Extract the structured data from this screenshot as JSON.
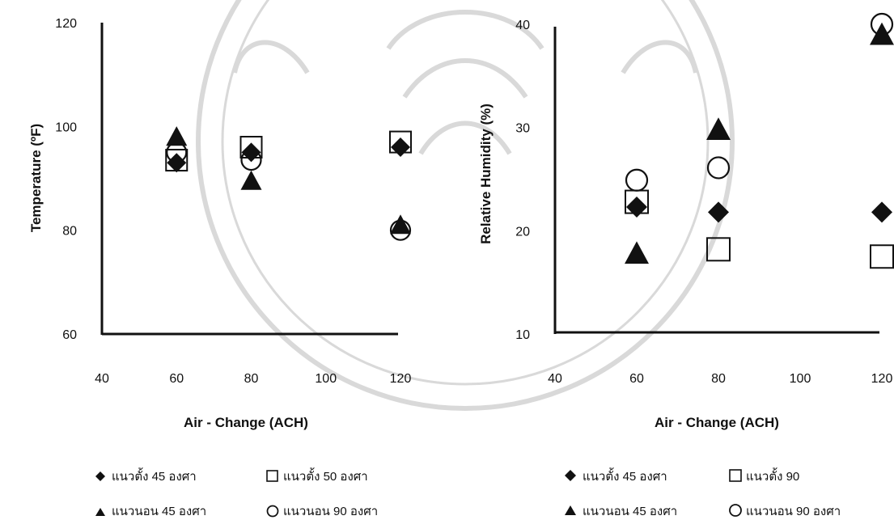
{
  "colors": {
    "ink": "#111111",
    "watermark": "#d6d6d6",
    "background": "#ffffff"
  },
  "chart_data": [
    {
      "type": "scatter",
      "title": "",
      "xlabel": "Air - Change (ACH)",
      "ylabel": "Temperature (ºF)",
      "xlim": [
        40,
        120
      ],
      "ylim": [
        60,
        120
      ],
      "xticks": [
        "40",
        "60",
        "80",
        "100",
        "120"
      ],
      "yticks": [
        "60",
        "80",
        "100",
        "120"
      ],
      "grid": false,
      "legend_position": "bottom",
      "series": [
        {
          "name": "แนวตั้ง 45 องศา",
          "marker": "diamond-filled",
          "x": [
            60,
            80,
            120
          ],
          "y": [
            93,
            95,
            96
          ]
        },
        {
          "name": "แนวตั้ง 50 องศา",
          "marker": "square-open",
          "x": [
            60,
            80,
            120
          ],
          "y": [
            93.5,
            96,
            97
          ]
        },
        {
          "name": "แนวนอน 45 องศา",
          "marker": "triangle-filled",
          "x": [
            60,
            80,
            120
          ],
          "y": [
            98,
            89.5,
            81
          ]
        },
        {
          "name": "แนวนอน 90 องศา",
          "marker": "circle-open",
          "x": [
            60,
            80,
            120
          ],
          "y": [
            95,
            93.5,
            80
          ]
        }
      ]
    },
    {
      "type": "scatter",
      "title": "",
      "xlabel": "Air - Change (ACH)",
      "ylabel": "Relative Humidity (%)",
      "xlim": [
        40,
        120
      ],
      "ylim": [
        10,
        40
      ],
      "xticks": [
        "40",
        "60",
        "80",
        "100",
        "120"
      ],
      "yticks": [
        "10",
        "20",
        "30",
        "40"
      ],
      "grid": false,
      "legend_position": "bottom",
      "series": [
        {
          "name": "แนวตั้ง 45 องศา",
          "marker": "diamond-filled",
          "x": [
            60,
            80,
            120
          ],
          "y": [
            22.3,
            21.8,
            21.8
          ]
        },
        {
          "name": "แนวตั้ง 90",
          "marker": "square-open",
          "x": [
            60,
            80,
            120
          ],
          "y": [
            22.8,
            18.2,
            17.5
          ]
        },
        {
          "name": "แนวนอน 45 องศา",
          "marker": "triangle-filled",
          "x": [
            60,
            120
          ],
          "y": [
            17.8,
            39
          ]
        },
        {
          "name": "แนวนอน 90 องศา",
          "marker": "circle-open",
          "x": [
            60,
            80,
            120
          ],
          "y": [
            24.9,
            26.1,
            40
          ]
        },
        {
          "name": "",
          "marker": "triangle-filled",
          "x": [
            80
          ],
          "y": [
            29.8
          ]
        }
      ]
    }
  ]
}
